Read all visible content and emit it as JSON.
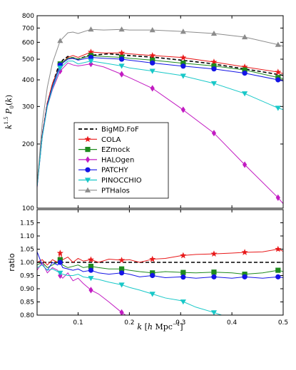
{
  "chart_data": [
    {
      "type": "line",
      "panel": "top",
      "ylabel": "k^{1.5} P_0(k)",
      "yscale": "log",
      "xlim": [
        0.02,
        0.5
      ],
      "ylim": [
        100,
        800
      ],
      "ytick_labels": [
        "100",
        "200",
        "300",
        "400",
        "500",
        "600",
        "700",
        "800"
      ],
      "xtick_labels": [
        "0.1",
        "0.2",
        "0.3",
        "0.4",
        "0.5"
      ],
      "legend_loc": "lower-left",
      "series": [
        {
          "name": "BigMD.FoF",
          "color": "#000000",
          "dashed": true,
          "marker": "none",
          "x": [
            0.02,
            0.03,
            0.04,
            0.05,
            0.06,
            0.07,
            0.08,
            0.09,
            0.1,
            0.12,
            0.14,
            0.16,
            0.18,
            0.2,
            0.25,
            0.3,
            0.35,
            0.4,
            0.45,
            0.5
          ],
          "y": [
            130,
            220,
            310,
            380,
            450,
            495,
            515,
            505,
            500,
            520,
            525,
            530,
            525,
            520,
            510,
            495,
            480,
            460,
            440,
            420
          ]
        },
        {
          "name": "COLA",
          "color": "#e8191a",
          "marker": "star",
          "x": [
            0.02,
            0.03,
            0.04,
            0.05,
            0.065,
            0.08,
            0.09,
            0.1,
            0.125,
            0.15,
            0.185,
            0.2,
            0.245,
            0.3,
            0.365,
            0.425,
            0.49,
            0.5
          ],
          "y": [
            130,
            222,
            312,
            385,
            470,
            510,
            520,
            510,
            540,
            535,
            535,
            530,
            520,
            510,
            485,
            460,
            435,
            428
          ],
          "marker_x": [
            0.065,
            0.125,
            0.185,
            0.245,
            0.305,
            0.365,
            0.425,
            0.49
          ]
        },
        {
          "name": "EZmock",
          "color": "#1e8a1e",
          "marker": "square",
          "x": [
            0.02,
            0.03,
            0.04,
            0.05,
            0.065,
            0.08,
            0.09,
            0.1,
            0.125,
            0.15,
            0.185,
            0.2,
            0.245,
            0.3,
            0.365,
            0.425,
            0.49,
            0.5
          ],
          "y": [
            128,
            218,
            305,
            375,
            475,
            505,
            510,
            500,
            520,
            515,
            510,
            505,
            495,
            480,
            465,
            445,
            410,
            405
          ],
          "marker_x": [
            0.065,
            0.125,
            0.185,
            0.245,
            0.305,
            0.365,
            0.425,
            0.49
          ]
        },
        {
          "name": "HALOgen",
          "color": "#c21bc2",
          "marker": "diamond",
          "x": [
            0.02,
            0.03,
            0.04,
            0.05,
            0.065,
            0.08,
            0.09,
            0.1,
            0.125,
            0.15,
            0.185,
            0.2,
            0.245,
            0.3,
            0.365,
            0.425,
            0.49,
            0.5
          ],
          "y": [
            125,
            215,
            300,
            360,
            440,
            480,
            470,
            465,
            475,
            460,
            425,
            410,
            365,
            295,
            225,
            160,
            112,
            105
          ],
          "marker_x": [
            0.065,
            0.125,
            0.185,
            0.245,
            0.305,
            0.365,
            0.425,
            0.49
          ]
        },
        {
          "name": "PATCHY",
          "color": "#1414e6",
          "marker": "circle",
          "x": [
            0.02,
            0.03,
            0.04,
            0.05,
            0.065,
            0.08,
            0.09,
            0.1,
            0.125,
            0.15,
            0.185,
            0.2,
            0.245,
            0.3,
            0.365,
            0.425,
            0.49,
            0.5
          ],
          "y": [
            127,
            218,
            305,
            372,
            470,
            500,
            505,
            495,
            510,
            505,
            500,
            495,
            480,
            465,
            450,
            430,
            400,
            395
          ],
          "marker_x": [
            0.065,
            0.125,
            0.185,
            0.245,
            0.305,
            0.365,
            0.425,
            0.49
          ]
        },
        {
          "name": "PINOCCHIO",
          "color": "#18c8c8",
          "marker": "triangle-down",
          "x": [
            0.02,
            0.03,
            0.04,
            0.05,
            0.065,
            0.08,
            0.09,
            0.1,
            0.125,
            0.15,
            0.185,
            0.2,
            0.245,
            0.3,
            0.365,
            0.425,
            0.49,
            0.5
          ],
          "y": [
            126,
            215,
            300,
            365,
            455,
            490,
            490,
            475,
            490,
            480,
            465,
            455,
            440,
            420,
            385,
            345,
            295,
            290
          ],
          "marker_x": [
            0.065,
            0.125,
            0.185,
            0.245,
            0.305,
            0.365,
            0.425,
            0.49
          ]
        },
        {
          "name": "PTHalos",
          "color": "#8c8c8c",
          "marker": "triangle-up",
          "x": [
            0.02,
            0.03,
            0.04,
            0.05,
            0.065,
            0.08,
            0.09,
            0.1,
            0.125,
            0.15,
            0.185,
            0.2,
            0.245,
            0.3,
            0.365,
            0.425,
            0.49,
            0.5
          ],
          "y": [
            130,
            250,
            370,
            480,
            610,
            665,
            670,
            660,
            690,
            685,
            690,
            685,
            685,
            675,
            660,
            635,
            585,
            575
          ],
          "marker_x": [
            0.065,
            0.125,
            0.185,
            0.245,
            0.305,
            0.365,
            0.425,
            0.49
          ]
        }
      ]
    },
    {
      "type": "line",
      "panel": "bottom",
      "ylabel": "ratio",
      "xlabel": "k [h Mpc^{-1}]",
      "xlim": [
        0.02,
        0.5
      ],
      "ylim": [
        0.8,
        1.2
      ],
      "ytick_labels": [
        "0.80",
        "0.85",
        "0.90",
        "0.95",
        "1.00",
        "1.05",
        "1.10",
        "1.15"
      ],
      "xtick_labels": [
        "0.1",
        "0.2",
        "0.3",
        "0.4",
        "0.5"
      ],
      "series": [
        {
          "name": "BigMD.FoF",
          "color": "#000000",
          "dashed": true,
          "marker": "none",
          "x": [
            0.02,
            0.5
          ],
          "y": [
            1.0,
            1.0
          ]
        },
        {
          "name": "COLA",
          "color": "#e8191a",
          "marker": "star",
          "x": [
            0.02,
            0.03,
            0.04,
            0.05,
            0.06,
            0.065,
            0.07,
            0.08,
            0.09,
            0.1,
            0.11,
            0.125,
            0.14,
            0.16,
            0.185,
            0.2,
            0.22,
            0.245,
            0.27,
            0.3,
            0.33,
            0.365,
            0.4,
            0.425,
            0.46,
            0.49,
            0.5
          ],
          "y": [
            1.0,
            1.01,
            0.99,
            1.01,
            1.0,
            1.035,
            1.01,
            1.02,
            1.0,
            1.015,
            1.005,
            1.01,
            1.0,
            1.012,
            1.008,
            1.01,
            1.0,
            1.012,
            1.015,
            1.025,
            1.03,
            1.032,
            1.035,
            1.038,
            1.04,
            1.05,
            1.042
          ],
          "marker_x": [
            0.065,
            0.125,
            0.185,
            0.245,
            0.305,
            0.365,
            0.425,
            0.49
          ]
        },
        {
          "name": "EZmock",
          "color": "#1e8a1e",
          "marker": "square",
          "x": [
            0.02,
            0.03,
            0.04,
            0.05,
            0.06,
            0.065,
            0.07,
            0.08,
            0.09,
            0.1,
            0.11,
            0.125,
            0.14,
            0.16,
            0.185,
            0.2,
            0.22,
            0.245,
            0.27,
            0.3,
            0.33,
            0.365,
            0.4,
            0.425,
            0.46,
            0.49,
            0.5
          ],
          "y": [
            0.99,
            1.0,
            0.98,
            0.99,
            1.0,
            1.01,
            0.99,
            0.98,
            0.985,
            0.99,
            0.98,
            0.985,
            0.98,
            0.975,
            0.975,
            0.97,
            0.965,
            0.96,
            0.965,
            0.962,
            0.96,
            0.963,
            0.96,
            0.955,
            0.96,
            0.97,
            0.965
          ],
          "marker_x": [
            0.065,
            0.125,
            0.185,
            0.245,
            0.305,
            0.365,
            0.425,
            0.49
          ]
        },
        {
          "name": "HALOgen",
          "color": "#c21bc2",
          "marker": "diamond",
          "x": [
            0.02,
            0.03,
            0.04,
            0.05,
            0.06,
            0.065,
            0.07,
            0.08,
            0.09,
            0.1,
            0.11,
            0.125,
            0.14,
            0.16,
            0.185,
            0.2
          ],
          "y": [
            0.97,
            1.0,
            0.96,
            0.98,
            0.97,
            0.95,
            0.94,
            0.96,
            0.93,
            0.94,
            0.92,
            0.895,
            0.88,
            0.85,
            0.81,
            0.79
          ],
          "marker_x": [
            0.065,
            0.125,
            0.185
          ]
        },
        {
          "name": "PATCHY",
          "color": "#1414e6",
          "marker": "circle",
          "x": [
            0.02,
            0.03,
            0.04,
            0.05,
            0.06,
            0.065,
            0.07,
            0.08,
            0.09,
            0.1,
            0.11,
            0.125,
            0.14,
            0.16,
            0.185,
            0.2,
            0.22,
            0.245,
            0.27,
            0.3,
            0.33,
            0.365,
            0.4,
            0.425,
            0.46,
            0.49,
            0.5
          ],
          "y": [
            1.04,
            0.99,
            0.97,
            1.0,
            0.99,
            1.0,
            0.98,
            0.975,
            0.97,
            0.975,
            0.965,
            0.97,
            0.96,
            0.955,
            0.96,
            0.955,
            0.945,
            0.95,
            0.942,
            0.945,
            0.94,
            0.945,
            0.94,
            0.945,
            0.94,
            0.945,
            0.942
          ],
          "marker_x": [
            0.065,
            0.125,
            0.185,
            0.245,
            0.305,
            0.365,
            0.425,
            0.49
          ]
        },
        {
          "name": "PINOCCHIO",
          "color": "#18c8c8",
          "marker": "triangle-down",
          "x": [
            0.02,
            0.03,
            0.04,
            0.05,
            0.06,
            0.065,
            0.07,
            0.08,
            0.09,
            0.1,
            0.11,
            0.125,
            0.14,
            0.16,
            0.185,
            0.2,
            0.22,
            0.245,
            0.27,
            0.3,
            0.33,
            0.365,
            0.38
          ],
          "y": [
            0.98,
            0.99,
            0.97,
            0.975,
            0.965,
            0.96,
            0.955,
            0.95,
            0.95,
            0.955,
            0.945,
            0.94,
            0.935,
            0.925,
            0.915,
            0.905,
            0.895,
            0.88,
            0.865,
            0.855,
            0.83,
            0.81,
            0.8
          ],
          "marker_x": [
            0.065,
            0.125,
            0.185,
            0.245,
            0.305,
            0.365
          ]
        }
      ]
    }
  ]
}
